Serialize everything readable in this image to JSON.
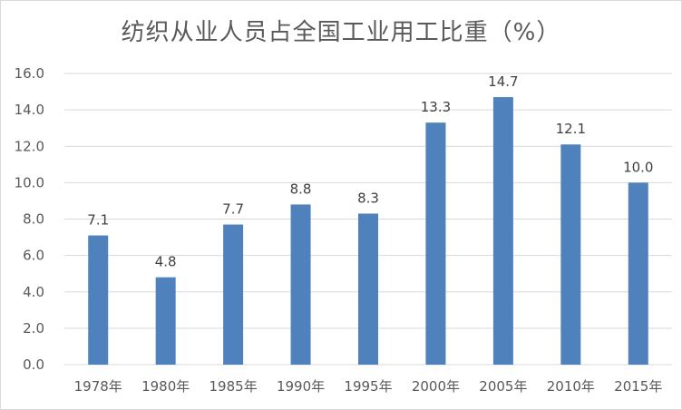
{
  "chart_data": {
    "type": "bar",
    "title": "纺织从业人员占全国工业用工比重（%）",
    "categories": [
      "1978年",
      "1980年",
      "1985年",
      "1990年",
      "1995年",
      "2000年",
      "2005年",
      "2010年",
      "2015年"
    ],
    "values": [
      7.1,
      4.8,
      7.7,
      8.8,
      8.3,
      13.3,
      14.7,
      12.1,
      10.0
    ],
    "data_labels": [
      "7.1",
      "4.8",
      "7.7",
      "8.8",
      "8.3",
      "13.3",
      "14.7",
      "12.1",
      "10.0"
    ],
    "y_ticks": [
      "0.0",
      "2.0",
      "4.0",
      "6.0",
      "8.0",
      "10.0",
      "12.0",
      "14.0",
      "16.0"
    ],
    "ylim": [
      0,
      16
    ],
    "grid": true,
    "legend": "none",
    "bar_color": "#4f81bd"
  }
}
